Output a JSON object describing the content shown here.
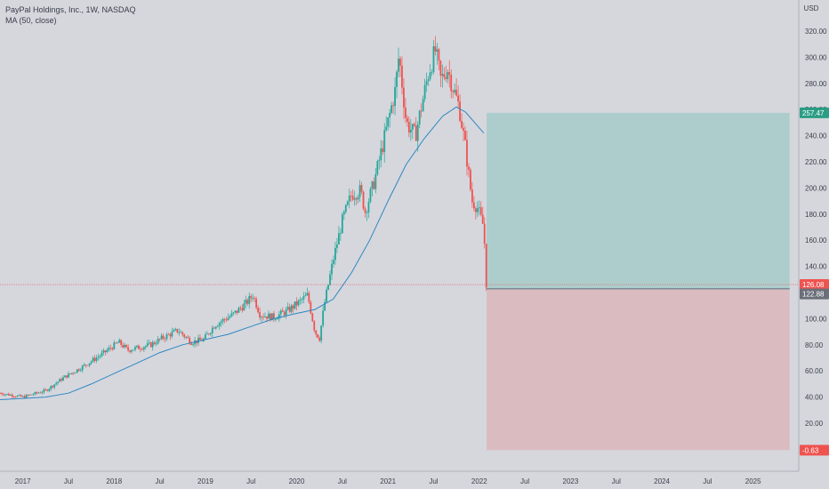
{
  "header": {
    "title": "PayPal Holdings, Inc., 1W, NASDAQ",
    "indicator": "MA (50, close)"
  },
  "currency": "USD",
  "colors": {
    "background": "#d5d7dd",
    "up": "#26a69a",
    "down": "#ef5350",
    "ma": "#2e86c1",
    "profit_zone": "#a9cccb",
    "loss_zone": "#dab9bc",
    "price_line": "#ef5350"
  },
  "chart_data": {
    "type": "candlestick",
    "symbol": "PayPal Holdings, Inc.",
    "interval": "1W",
    "exchange": "NASDAQ",
    "ylim": [
      -8,
      330
    ],
    "y_ticks": [
      "320.00",
      "300.00",
      "280.00",
      "260.00",
      "240.00",
      "220.00",
      "200.00",
      "180.00",
      "160.00",
      "140.00",
      "100.00",
      "80.00",
      "60.00",
      "40.00",
      "20.00"
    ],
    "y_tick_values": [
      320,
      300,
      280,
      260,
      240,
      220,
      200,
      180,
      160,
      140,
      100,
      80,
      60,
      40,
      20
    ],
    "x_ticks": [
      "2017",
      "Jul",
      "2018",
      "Jul",
      "2019",
      "Jul",
      "2020",
      "Jul",
      "2021",
      "Jul",
      "2022",
      "Jul",
      "2023",
      "Jul",
      "2024",
      "Jul",
      "2025"
    ],
    "x_tick_dates": [
      2017.0,
      2017.5,
      2018.0,
      2018.5,
      2019.0,
      2019.5,
      2020.0,
      2020.5,
      2021.0,
      2021.5,
      2022.0,
      2022.5,
      2023.0,
      2023.5,
      2024.0,
      2024.5,
      2025.0
    ],
    "x_range": [
      2016.75,
      2025.5
    ],
    "price_path": [
      [
        2016.75,
        43
      ],
      [
        2017.0,
        40
      ],
      [
        2017.25,
        45
      ],
      [
        2017.45,
        55
      ],
      [
        2017.65,
        63
      ],
      [
        2017.85,
        72
      ],
      [
        2018.05,
        82
      ],
      [
        2018.15,
        76
      ],
      [
        2018.4,
        80
      ],
      [
        2018.55,
        86
      ],
      [
        2018.7,
        91
      ],
      [
        2018.85,
        82
      ],
      [
        2018.98,
        84
      ],
      [
        2019.1,
        95
      ],
      [
        2019.3,
        103
      ],
      [
        2019.45,
        112
      ],
      [
        2019.52,
        118
      ],
      [
        2019.6,
        103
      ],
      [
        2019.75,
        101
      ],
      [
        2019.9,
        106
      ],
      [
        2020.05,
        114
      ],
      [
        2020.12,
        118
      ],
      [
        2020.2,
        90
      ],
      [
        2020.25,
        85
      ],
      [
        2020.3,
        110
      ],
      [
        2020.4,
        145
      ],
      [
        2020.5,
        175
      ],
      [
        2020.6,
        195
      ],
      [
        2020.7,
        198
      ],
      [
        2020.75,
        182
      ],
      [
        2020.85,
        205
      ],
      [
        2020.95,
        235
      ],
      [
        2021.08,
        275
      ],
      [
        2021.12,
        302
      ],
      [
        2021.2,
        250
      ],
      [
        2021.3,
        240
      ],
      [
        2021.45,
        290
      ],
      [
        2021.52,
        305
      ],
      [
        2021.58,
        282
      ],
      [
        2021.65,
        292
      ],
      [
        2021.72,
        275
      ],
      [
        2021.78,
        262
      ],
      [
        2021.85,
        230
      ],
      [
        2021.92,
        190
      ],
      [
        2021.98,
        185
      ],
      [
        2022.05,
        170
      ],
      [
        2022.08,
        122
      ]
    ],
    "ma_series": {
      "name": "MA (50, close)",
      "points": [
        [
          2016.75,
          38
        ],
        [
          2017.0,
          39
        ],
        [
          2017.25,
          40
        ],
        [
          2017.5,
          43
        ],
        [
          2017.75,
          50
        ],
        [
          2018.0,
          58
        ],
        [
          2018.25,
          66
        ],
        [
          2018.5,
          74
        ],
        [
          2018.75,
          80
        ],
        [
          2019.0,
          84
        ],
        [
          2019.25,
          88
        ],
        [
          2019.5,
          94
        ],
        [
          2019.75,
          100
        ],
        [
          2020.0,
          104
        ],
        [
          2020.2,
          107
        ],
        [
          2020.4,
          115
        ],
        [
          2020.6,
          135
        ],
        [
          2020.8,
          160
        ],
        [
          2021.0,
          190
        ],
        [
          2021.2,
          218
        ],
        [
          2021.4,
          238
        ],
        [
          2021.6,
          255
        ],
        [
          2021.75,
          262
        ],
        [
          2021.85,
          258
        ],
        [
          2021.95,
          250
        ],
        [
          2022.05,
          242
        ]
      ]
    },
    "position": {
      "entry_date": 2022.08,
      "end_date": 2025.4,
      "entry_price": 122.88,
      "target_price": 257.47,
      "stop_price": -0.63,
      "target_label": "257.47",
      "entry_label": "122.88",
      "stop_label": "-0.63"
    },
    "last_price": 126.08,
    "last_price_label": "126.08"
  }
}
